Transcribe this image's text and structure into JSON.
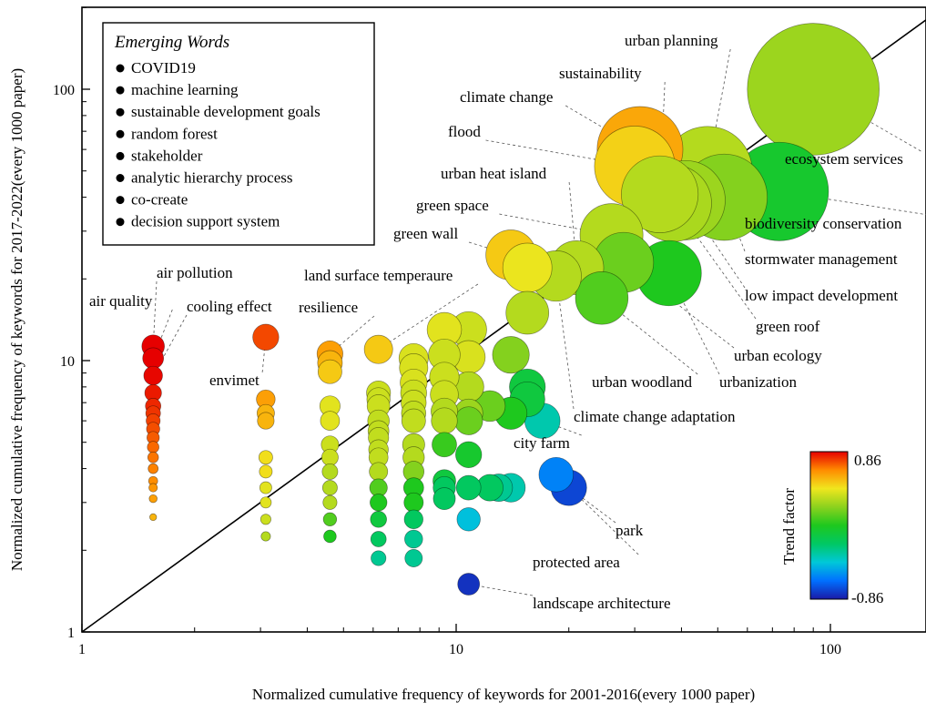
{
  "chart_data": {
    "type": "scatter",
    "title": "",
    "xlabel": "Normalized cumulative frequency of keywords for 2001-2016(every 1000 paper)",
    "ylabel": "Normalized cumulative frequency of keywords for 2017-2022(every 1000 paper)",
    "x_scale": "log",
    "y_scale": "log",
    "xlim": [
      1,
      200
    ],
    "ylim": [
      1,
      200
    ],
    "x_ticks": [
      {
        "value": 1,
        "label": "1"
      },
      {
        "value": 10,
        "label": "10"
      },
      {
        "value": 100,
        "label": "100"
      }
    ],
    "y_ticks": [
      {
        "value": 1,
        "label": "1"
      },
      {
        "value": 10,
        "label": "10"
      },
      {
        "value": 100,
        "label": "100"
      }
    ],
    "grid": false,
    "reference_line": {
      "from": [
        1,
        1
      ],
      "to": [
        200,
        200
      ],
      "type": "diagonal y = x"
    },
    "size_encoding": "marker size grows with frequency",
    "color_encoding": "trend factor",
    "legend": {
      "title": "Emerging Words",
      "placement": "top-left",
      "items": [
        "COVID19",
        "machine learning",
        "sustainable development goals",
        "random forest",
        "stakeholder",
        "analytic hierarchy process",
        "co-create",
        "decision support system"
      ]
    },
    "colorbar": {
      "label": "Trend factor",
      "max_label": "0.86",
      "min_label": "-0.86",
      "min": -0.86,
      "max": 0.86,
      "placement": "bottom-right",
      "stops": [
        "#1a1aa6",
        "#0070ff",
        "#00c8d8",
        "#00c864",
        "#1ec81e",
        "#8cd21e",
        "#f0e61e",
        "#ff8c00",
        "#e60000"
      ]
    },
    "points": [
      {
        "x": 90,
        "y": 100,
        "t": 0.25,
        "label": "ecosystem services"
      },
      {
        "x": 73,
        "y": 42,
        "t": -0.05,
        "label": "biodiversity conservation"
      },
      {
        "x": 52,
        "y": 40,
        "t": 0.2,
        "label": "stormwater management"
      },
      {
        "x": 47,
        "y": 50,
        "t": 0.3,
        "label": "urban planning"
      },
      {
        "x": 41,
        "y": 39,
        "t": 0.25,
        "label": "low impact development"
      },
      {
        "x": 38,
        "y": 38,
        "t": 0.28,
        "label": "green roof"
      },
      {
        "x": 35,
        "y": 41,
        "t": 0.3,
        "label": "sustainability"
      },
      {
        "x": 31,
        "y": 60,
        "t": 0.58,
        "label": "climate change"
      },
      {
        "x": 30,
        "y": 52,
        "t": 0.48,
        "label": "flood"
      },
      {
        "x": 26,
        "y": 29,
        "t": 0.3,
        "label": "green space"
      },
      {
        "x": 28,
        "y": 23,
        "t": 0.15,
        "label": "urban ecology"
      },
      {
        "x": 37,
        "y": 21,
        "t": 0.0,
        "label": "urbanization"
      },
      {
        "x": 21,
        "y": 22,
        "t": 0.3,
        "label": "urban heat island"
      },
      {
        "x": 24.5,
        "y": 17,
        "t": 0.1,
        "label": "urban woodland"
      },
      {
        "x": 18.5,
        "y": 20.5,
        "t": 0.3,
        "label": "climate change adaptation"
      },
      {
        "x": 14,
        "y": 24.5,
        "t": 0.5,
        "label": "green wall"
      },
      {
        "x": 15.5,
        "y": 22,
        "t": 0.42,
        "label": ""
      },
      {
        "x": 15.5,
        "y": 15,
        "t": 0.3,
        "label": ""
      },
      {
        "x": 14,
        "y": 10.5,
        "t": 0.2,
        "label": ""
      },
      {
        "x": 10.8,
        "y": 13,
        "t": 0.35,
        "label": ""
      },
      {
        "x": 9.3,
        "y": 13,
        "t": 0.4,
        "label": ""
      },
      {
        "x": 9.3,
        "y": 10.5,
        "t": 0.35,
        "label": ""
      },
      {
        "x": 9.3,
        "y": 8.7,
        "t": 0.35,
        "label": ""
      },
      {
        "x": 9.3,
        "y": 7.5,
        "t": 0.35,
        "label": ""
      },
      {
        "x": 9.3,
        "y": 6.5,
        "t": 0.3,
        "label": ""
      },
      {
        "x": 9.3,
        "y": 6.0,
        "t": 0.3,
        "label": ""
      },
      {
        "x": 9.3,
        "y": 4.9,
        "t": 0.05,
        "label": ""
      },
      {
        "x": 9.3,
        "y": 3.6,
        "t": -0.1,
        "label": ""
      },
      {
        "x": 9.3,
        "y": 3.4,
        "t": -0.2,
        "label": ""
      },
      {
        "x": 9.3,
        "y": 3.1,
        "t": -0.2,
        "label": ""
      },
      {
        "x": 7.7,
        "y": 10.2,
        "t": 0.38,
        "label": ""
      },
      {
        "x": 7.7,
        "y": 9.4,
        "t": 0.38,
        "label": ""
      },
      {
        "x": 7.7,
        "y": 8.3,
        "t": 0.38,
        "label": ""
      },
      {
        "x": 7.7,
        "y": 7.6,
        "t": 0.35,
        "label": ""
      },
      {
        "x": 7.7,
        "y": 7.0,
        "t": 0.35,
        "label": ""
      },
      {
        "x": 7.7,
        "y": 6.4,
        "t": 0.33,
        "label": ""
      },
      {
        "x": 7.7,
        "y": 6.0,
        "t": 0.33,
        "label": ""
      },
      {
        "x": 7.7,
        "y": 4.9,
        "t": 0.3,
        "label": ""
      },
      {
        "x": 7.7,
        "y": 4.4,
        "t": 0.3,
        "label": ""
      },
      {
        "x": 7.7,
        "y": 3.9,
        "t": 0.2,
        "label": ""
      },
      {
        "x": 7.7,
        "y": 3.4,
        "t": 0.0,
        "label": ""
      },
      {
        "x": 7.7,
        "y": 3.0,
        "t": 0.0,
        "label": ""
      },
      {
        "x": 7.7,
        "y": 2.6,
        "t": -0.2,
        "label": ""
      },
      {
        "x": 7.7,
        "y": 2.2,
        "t": -0.3,
        "label": ""
      },
      {
        "x": 7.7,
        "y": 1.87,
        "t": -0.3,
        "label": ""
      },
      {
        "x": 10.8,
        "y": 10.3,
        "t": 0.38,
        "label": ""
      },
      {
        "x": 10.8,
        "y": 8.0,
        "t": 0.3,
        "label": ""
      },
      {
        "x": 10.8,
        "y": 6.4,
        "t": 0.25,
        "label": ""
      },
      {
        "x": 10.8,
        "y": 6.0,
        "t": 0.15,
        "label": ""
      },
      {
        "x": 10.8,
        "y": 4.5,
        "t": -0.05,
        "label": ""
      },
      {
        "x": 10.8,
        "y": 3.4,
        "t": -0.2,
        "label": ""
      },
      {
        "x": 10.8,
        "y": 2.6,
        "t": -0.45,
        "label": ""
      },
      {
        "x": 10.8,
        "y": 1.5,
        "t": -0.8,
        "label": "landscape architecture"
      },
      {
        "x": 12.3,
        "y": 6.8,
        "t": 0.15,
        "label": ""
      },
      {
        "x": 12.3,
        "y": 3.4,
        "t": -0.2,
        "label": ""
      },
      {
        "x": 13.0,
        "y": 3.4,
        "t": -0.3,
        "label": ""
      },
      {
        "x": 14.0,
        "y": 6.4,
        "t": 0.0,
        "label": ""
      },
      {
        "x": 14.0,
        "y": 3.4,
        "t": -0.35,
        "label": ""
      },
      {
        "x": 15.5,
        "y": 8.0,
        "t": -0.1,
        "label": ""
      },
      {
        "x": 15.5,
        "y": 7.2,
        "t": -0.1,
        "label": ""
      },
      {
        "x": 17.0,
        "y": 6.0,
        "t": -0.35,
        "label": "city farm"
      },
      {
        "x": 18.5,
        "y": 3.8,
        "t": -0.6,
        "label": "protected area"
      },
      {
        "x": 20.0,
        "y": 3.4,
        "t": -0.75,
        "label": "park"
      },
      {
        "x": 6.2,
        "y": 11.0,
        "t": 0.5,
        "label": "land surface temperaure"
      },
      {
        "x": 6.2,
        "y": 7.6,
        "t": 0.35,
        "label": ""
      },
      {
        "x": 6.2,
        "y": 7.2,
        "t": 0.35,
        "label": ""
      },
      {
        "x": 6.2,
        "y": 6.8,
        "t": 0.35,
        "label": ""
      },
      {
        "x": 6.2,
        "y": 6.0,
        "t": 0.33,
        "label": ""
      },
      {
        "x": 6.2,
        "y": 5.5,
        "t": 0.33,
        "label": ""
      },
      {
        "x": 6.2,
        "y": 5.2,
        "t": 0.33,
        "label": ""
      },
      {
        "x": 6.2,
        "y": 4.7,
        "t": 0.33,
        "label": ""
      },
      {
        "x": 6.2,
        "y": 4.4,
        "t": 0.33,
        "label": ""
      },
      {
        "x": 6.2,
        "y": 3.9,
        "t": 0.3,
        "label": ""
      },
      {
        "x": 6.2,
        "y": 3.4,
        "t": 0.1,
        "label": ""
      },
      {
        "x": 6.2,
        "y": 3.0,
        "t": 0.0,
        "label": ""
      },
      {
        "x": 6.2,
        "y": 2.6,
        "t": -0.1,
        "label": ""
      },
      {
        "x": 6.2,
        "y": 2.2,
        "t": -0.2,
        "label": ""
      },
      {
        "x": 6.2,
        "y": 1.87,
        "t": -0.3,
        "label": ""
      },
      {
        "x": 4.6,
        "y": 10.6,
        "t": 0.6,
        "label": "resilience"
      },
      {
        "x": 4.6,
        "y": 9.8,
        "t": 0.55,
        "label": ""
      },
      {
        "x": 4.6,
        "y": 9.1,
        "t": 0.5,
        "label": ""
      },
      {
        "x": 4.6,
        "y": 6.8,
        "t": 0.4,
        "label": ""
      },
      {
        "x": 4.6,
        "y": 6.0,
        "t": 0.4,
        "label": ""
      },
      {
        "x": 4.6,
        "y": 4.9,
        "t": 0.35,
        "label": ""
      },
      {
        "x": 4.6,
        "y": 4.4,
        "t": 0.35,
        "label": ""
      },
      {
        "x": 4.6,
        "y": 3.9,
        "t": 0.3,
        "label": ""
      },
      {
        "x": 4.6,
        "y": 3.4,
        "t": 0.3,
        "label": ""
      },
      {
        "x": 4.6,
        "y": 3.0,
        "t": 0.3,
        "label": ""
      },
      {
        "x": 4.6,
        "y": 2.6,
        "t": 0.1,
        "label": ""
      },
      {
        "x": 4.6,
        "y": 2.25,
        "t": 0.0,
        "label": ""
      },
      {
        "x": 3.1,
        "y": 12.2,
        "t": 0.75,
        "label": "envimet"
      },
      {
        "x": 3.1,
        "y": 7.2,
        "t": 0.6,
        "label": ""
      },
      {
        "x": 3.1,
        "y": 6.4,
        "t": 0.55,
        "label": ""
      },
      {
        "x": 3.1,
        "y": 6.0,
        "t": 0.55,
        "label": ""
      },
      {
        "x": 3.1,
        "y": 4.4,
        "t": 0.45,
        "label": ""
      },
      {
        "x": 3.1,
        "y": 3.9,
        "t": 0.45,
        "label": ""
      },
      {
        "x": 3.1,
        "y": 3.4,
        "t": 0.4,
        "label": ""
      },
      {
        "x": 3.1,
        "y": 3.0,
        "t": 0.4,
        "label": ""
      },
      {
        "x": 3.1,
        "y": 2.6,
        "t": 0.35,
        "label": ""
      },
      {
        "x": 3.1,
        "y": 2.25,
        "t": 0.3,
        "label": ""
      },
      {
        "x": 1.55,
        "y": 11.3,
        "t": 0.86,
        "label": "air pollution"
      },
      {
        "x": 1.55,
        "y": 10.2,
        "t": 0.86,
        "label": "air quality"
      },
      {
        "x": 1.55,
        "y": 8.8,
        "t": 0.85,
        "label": "cooling effect"
      },
      {
        "x": 1.55,
        "y": 7.6,
        "t": 0.82,
        "label": ""
      },
      {
        "x": 1.55,
        "y": 6.8,
        "t": 0.8,
        "label": ""
      },
      {
        "x": 1.55,
        "y": 6.4,
        "t": 0.78,
        "label": ""
      },
      {
        "x": 1.55,
        "y": 6.0,
        "t": 0.76,
        "label": ""
      },
      {
        "x": 1.55,
        "y": 5.6,
        "t": 0.74,
        "label": ""
      },
      {
        "x": 1.55,
        "y": 5.2,
        "t": 0.72,
        "label": ""
      },
      {
        "x": 1.55,
        "y": 4.8,
        "t": 0.7,
        "label": ""
      },
      {
        "x": 1.55,
        "y": 4.4,
        "t": 0.68,
        "label": ""
      },
      {
        "x": 1.55,
        "y": 4.0,
        "t": 0.66,
        "label": ""
      },
      {
        "x": 1.55,
        "y": 3.6,
        "t": 0.64,
        "label": ""
      },
      {
        "x": 1.55,
        "y": 3.4,
        "t": 0.62,
        "label": ""
      },
      {
        "x": 1.55,
        "y": 3.1,
        "t": 0.6,
        "label": ""
      },
      {
        "x": 1.55,
        "y": 2.65,
        "t": 0.55,
        "label": ""
      }
    ]
  }
}
